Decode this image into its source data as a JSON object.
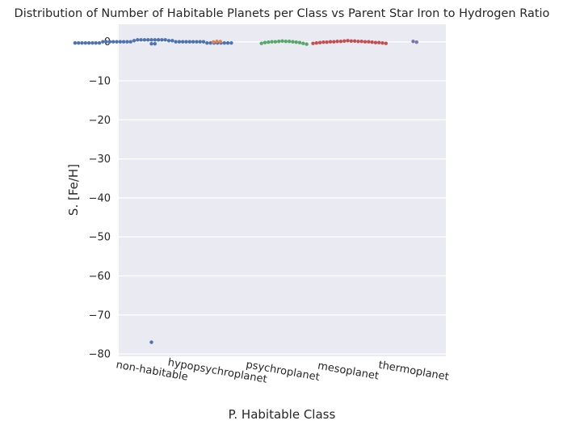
{
  "chart_data": {
    "type": "scatter",
    "subtype": "swarm",
    "title": "Distribution of Number of Habitable Planets per Class vs Parent Star Iron to Hydrogen Ratio",
    "xlabel": "P. Habitable Class",
    "ylabel": "S. [Fe/H]",
    "ylim": [
      -80.6,
      4.5
    ],
    "yticks": [
      0,
      -10,
      -20,
      -30,
      -40,
      -50,
      -60,
      -70,
      -80
    ],
    "grid": true,
    "legend": "none",
    "categories": [
      "non-habitable",
      "hypopsychroplanet",
      "psychroplanet",
      "mesoplanet",
      "thermoplanet"
    ],
    "series": [
      {
        "category": "non-habitable",
        "color": "#4c72b0",
        "values": [
          0.5,
          0.5,
          0.5,
          0.5,
          0.5,
          0.5,
          0.5,
          0.5,
          0.5,
          0.3,
          0.3,
          0.3,
          0,
          0,
          0,
          0,
          0,
          0,
          0,
          0,
          0,
          0,
          0,
          0,
          0,
          0,
          0,
          0,
          0,
          0,
          -0.3,
          -0.3,
          -0.3,
          -0.3,
          -0.3,
          -0.3,
          -0.3,
          -0.3,
          -0.3,
          -0.3,
          -0.3,
          -0.3,
          -0.3,
          -0.3,
          -0.3,
          -0.3,
          -0.5,
          -0.5,
          -77
        ]
      },
      {
        "category": "hypopsychroplanet",
        "color": "#dd8452",
        "values": [
          0.1,
          -0.05,
          0.05
        ]
      },
      {
        "category": "psychroplanet",
        "color": "#55a868",
        "values": [
          0.1,
          0.1,
          0,
          0,
          -0.1,
          -0.2,
          -0.4,
          -0.6,
          -0.2,
          -0.4,
          -0.1,
          0,
          0.1,
          0.2
        ]
      },
      {
        "category": "mesoplanet",
        "color": "#c44e52",
        "values": [
          0.2,
          0.2,
          0.1,
          0.1,
          0,
          0,
          -0.1,
          -0.2,
          -0.3,
          -0.4,
          -0.3,
          -0.4,
          -0.2,
          -0.2,
          -0.1,
          -0.1,
          0,
          0,
          0.1,
          0.1,
          0.2,
          0.3
        ]
      },
      {
        "category": "thermoplanet",
        "color": "#8172b3",
        "values": [
          0.1,
          -0.1
        ]
      }
    ]
  }
}
